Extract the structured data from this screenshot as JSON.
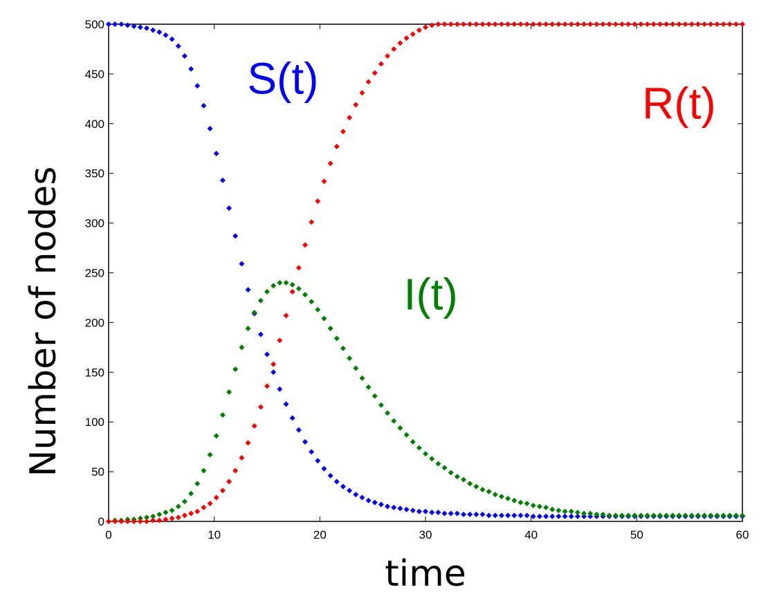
{
  "chart_data": {
    "type": "scatter",
    "title": "",
    "xlabel": "time",
    "ylabel": "Number of nodes",
    "xlim": [
      0,
      60
    ],
    "ylim": [
      0,
      500
    ],
    "xticks": [
      0,
      10,
      20,
      30,
      40,
      50,
      60
    ],
    "yticks": [
      0,
      50,
      100,
      150,
      200,
      250,
      300,
      350,
      400,
      450,
      500
    ],
    "grid": false,
    "x": [
      0,
      0.6,
      1.2,
      1.8,
      2.4,
      3,
      3.6,
      4.2,
      4.8,
      5.4,
      6,
      6.6,
      7.2,
      7.8,
      8.4,
      9,
      9.6,
      10.2,
      10.8,
      11.4,
      12,
      12.6,
      13.2,
      13.8,
      14.4,
      15,
      15.6,
      16.2,
      16.8,
      17.4,
      18,
      18.6,
      19.2,
      19.8,
      20.4,
      21,
      21.6,
      22.2,
      22.8,
      23.4,
      24,
      24.6,
      25.2,
      25.8,
      26.4,
      27,
      27.6,
      28.2,
      28.8,
      29.4,
      30,
      30.6,
      31.2,
      31.8,
      32.4,
      33,
      33.6,
      34.2,
      34.8,
      35.4,
      36,
      36.6,
      37.2,
      37.8,
      38.4,
      39,
      39.6,
      40.2,
      40.8,
      41.4,
      42,
      42.6,
      43.2,
      43.8,
      44.4,
      45,
      45.6,
      46.2,
      46.8,
      47.4,
      48,
      48.6,
      49.2,
      49.8,
      50.4,
      51,
      51.6,
      52.2,
      52.8,
      53.4,
      54,
      54.6,
      55.2,
      55.8,
      56.4,
      57,
      57.6,
      58.2,
      58.8,
      59.4,
      60
    ],
    "series": [
      {
        "name": "S(t)",
        "color": "#0000ff",
        "values": [
          500,
          500,
          500,
          499,
          498,
          497,
          496,
          494,
          492,
          489,
          485,
          478,
          468,
          455,
          438,
          418,
          395,
          370,
          343,
          315,
          287,
          259,
          233,
          209,
          188,
          168,
          150,
          133,
          118,
          104,
          92,
          80,
          70,
          61,
          53,
          46,
          40,
          35,
          31,
          27,
          24,
          21,
          19,
          17,
          15,
          14,
          13,
          12,
          11,
          10,
          10,
          9,
          9,
          8,
          8,
          8,
          7,
          7,
          7,
          7,
          6,
          6,
          6,
          6,
          6,
          6,
          6,
          5,
          5,
          5,
          5,
          5,
          5,
          5,
          5,
          5,
          5,
          5,
          5,
          5,
          5,
          5,
          5,
          5,
          5,
          5,
          5,
          5,
          5,
          5,
          5,
          5,
          5,
          5,
          5,
          5,
          5,
          5,
          5,
          5,
          5
        ]
      },
      {
        "name": "I(t)",
        "color": "#008000",
        "values": [
          0,
          1,
          1,
          2,
          2,
          3,
          4,
          5,
          7,
          9,
          11,
          15,
          20,
          28,
          38,
          51,
          67,
          86,
          107,
          130,
          153,
          175,
          194,
          210,
          222,
          231,
          237,
          240,
          240,
          238,
          234,
          228,
          221,
          213,
          204,
          194,
          184,
          174,
          164,
          154,
          144,
          135,
          126,
          117,
          109,
          101,
          94,
          87,
          80,
          74,
          68,
          63,
          58,
          54,
          49,
          45,
          42,
          38,
          35,
          32,
          30,
          27,
          25,
          23,
          21,
          19,
          18,
          16,
          15,
          14,
          12,
          11,
          10,
          10,
          9,
          8,
          8,
          7,
          7,
          6,
          6,
          6,
          6,
          6,
          6,
          6,
          6,
          6,
          6,
          6,
          6,
          6,
          6,
          6,
          6,
          6,
          6,
          6,
          6,
          6,
          6
        ]
      },
      {
        "name": "R(t)",
        "color": "#ff0000",
        "values": [
          0,
          0,
          0,
          0,
          0,
          0,
          0,
          1,
          1,
          2,
          3,
          4,
          6,
          8,
          10,
          14,
          18,
          24,
          31,
          40,
          51,
          64,
          79,
          96,
          115,
          136,
          158,
          182,
          207,
          231,
          255,
          278,
          301,
          322,
          342,
          360,
          377,
          392,
          406,
          419,
          431,
          442,
          451,
          460,
          468,
          475,
          481,
          486,
          490,
          494,
          497,
          499,
          500,
          500,
          500,
          500,
          500,
          500,
          500,
          500,
          500,
          500,
          500,
          500,
          500,
          500,
          500,
          500,
          500,
          500,
          500,
          500,
          500,
          500,
          500,
          500,
          500,
          500,
          500,
          500,
          500,
          500,
          500,
          500,
          500,
          500,
          500,
          500,
          500,
          500,
          500,
          500,
          500,
          500,
          500,
          500,
          500,
          500,
          500,
          500,
          500
        ]
      }
    ],
    "annotations": [
      {
        "text": "S(t)",
        "color": "#0000ff",
        "x": 16.5,
        "y": 430
      },
      {
        "text": "I(t)",
        "color": "#008000",
        "x": 30.5,
        "y": 213
      },
      {
        "text": "R(t)",
        "color": "#ff0000",
        "x": 54,
        "y": 405
      }
    ]
  }
}
